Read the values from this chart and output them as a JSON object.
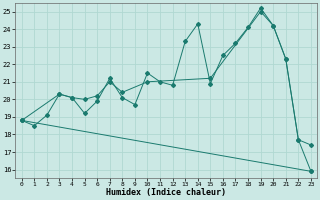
{
  "xlabel": "Humidex (Indice chaleur)",
  "xlim": [
    -0.5,
    23.5
  ],
  "ylim": [
    15.5,
    25.5
  ],
  "xticks": [
    0,
    1,
    2,
    3,
    4,
    5,
    6,
    7,
    8,
    9,
    10,
    11,
    12,
    13,
    14,
    15,
    16,
    17,
    18,
    19,
    20,
    21,
    22,
    23
  ],
  "yticks": [
    16,
    17,
    18,
    19,
    20,
    21,
    22,
    23,
    24,
    25
  ],
  "bg_color": "#cbe8e4",
  "line_color": "#1a7a6e",
  "grid_color": "#b0d8d2",
  "line1_x": [
    0,
    1,
    2,
    3,
    4,
    5,
    6,
    7,
    8,
    9,
    10,
    11,
    12,
    13,
    14,
    15,
    16,
    17,
    18,
    19,
    20,
    21,
    22,
    23
  ],
  "line1_y": [
    18.8,
    18.5,
    19.1,
    20.3,
    20.1,
    19.2,
    19.9,
    21.2,
    20.1,
    19.7,
    21.5,
    21.0,
    20.8,
    23.3,
    24.3,
    20.9,
    22.5,
    23.2,
    24.1,
    25.2,
    24.2,
    22.3,
    17.7,
    17.4
  ],
  "line2_x": [
    0,
    3,
    4,
    5,
    6,
    7,
    8,
    10,
    15,
    19,
    20,
    21,
    22,
    23
  ],
  "line2_y": [
    18.8,
    20.3,
    20.1,
    20.0,
    20.2,
    21.0,
    20.4,
    21.0,
    21.2,
    25.0,
    24.2,
    22.3,
    17.7,
    15.9
  ],
  "line3_x": [
    0,
    23
  ],
  "line3_y": [
    18.8,
    15.9
  ]
}
